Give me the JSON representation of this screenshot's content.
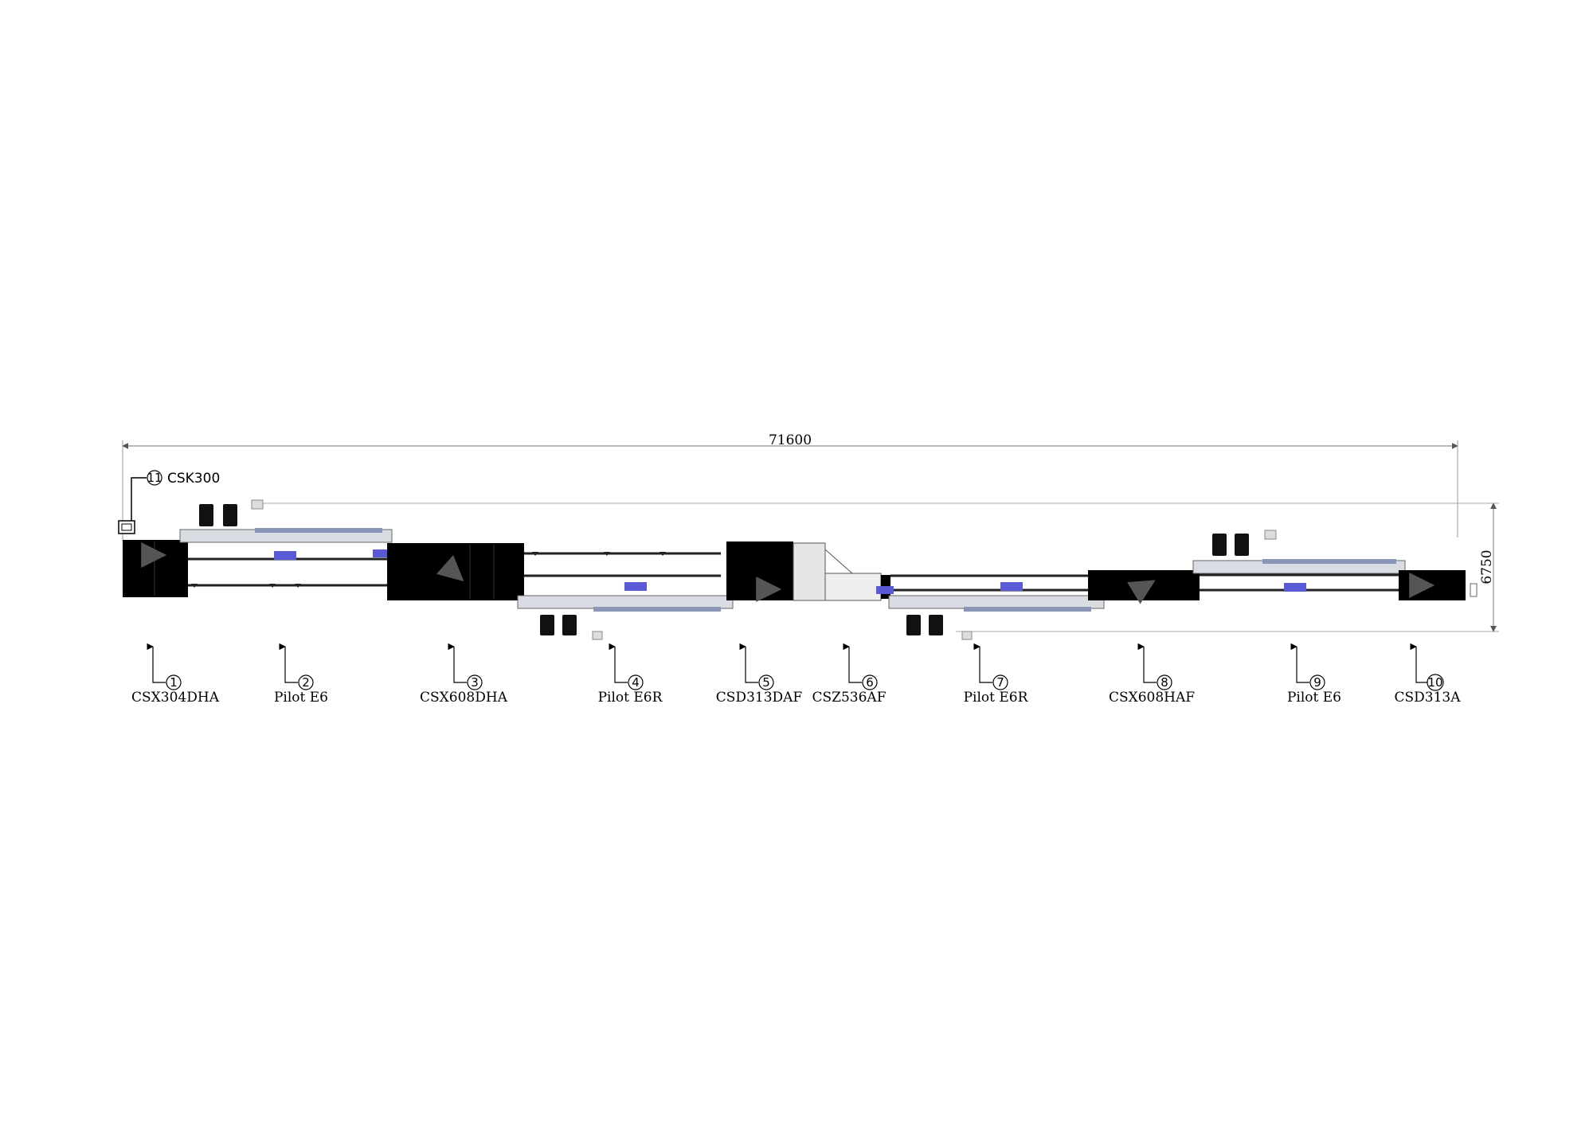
{
  "dimensions": {
    "total_length": "71600",
    "total_width": "6750"
  },
  "callout": {
    "number": "11",
    "label": "CSK300"
  },
  "stations": [
    {
      "number": "1",
      "label": "CSX304DHA"
    },
    {
      "number": "2",
      "label": "Pilot E6"
    },
    {
      "number": "3",
      "label": "CSX608DHA"
    },
    {
      "number": "4",
      "label": "Pilot E6R"
    },
    {
      "number": "5",
      "label": "CSD313DAF"
    },
    {
      "number": "6",
      "label": "CSZ536AF"
    },
    {
      "number": "7",
      "label": "Pilot E6R"
    },
    {
      "number": "8",
      "label": "CSX608HAF"
    },
    {
      "number": "9",
      "label": "Pilot E6"
    },
    {
      "number": "10",
      "label": "CSD313A"
    }
  ],
  "colors": {
    "machine": "#000000",
    "flow_arrow": "#3b3bd6",
    "conveyor": "#9aa3b8",
    "line": "#555555"
  }
}
